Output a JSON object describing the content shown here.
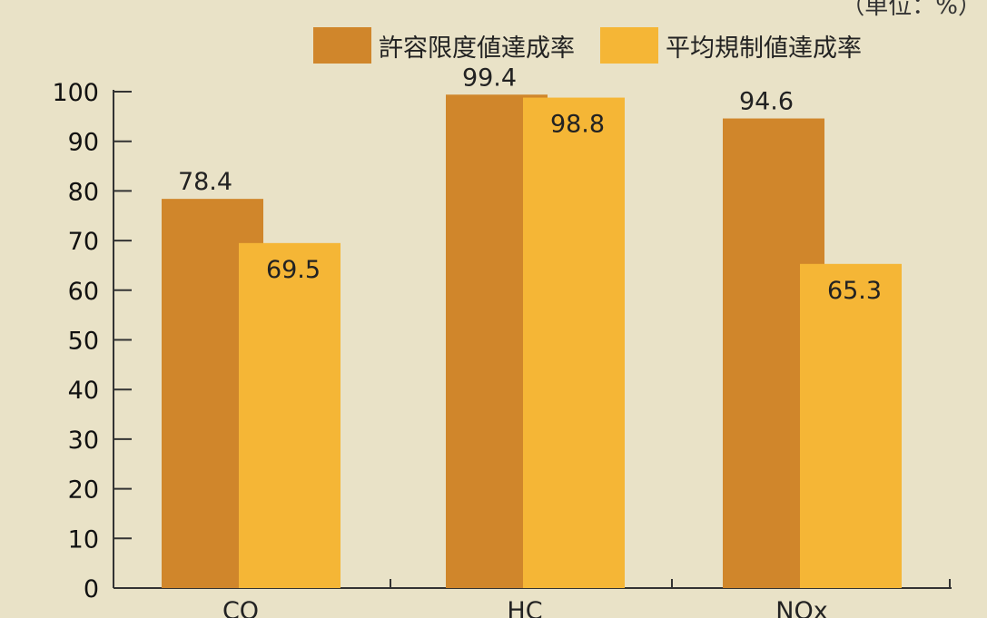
{
  "unit_note": "（単位：%）",
  "colors": {
    "series1": "#d0862b",
    "series2": "#f5b636",
    "axis": "#333333",
    "background": "#e9e2c7"
  },
  "chart_data": {
    "type": "bar",
    "title": "",
    "xlabel": "",
    "ylabel": "",
    "ylim": [
      0,
      100
    ],
    "yticks": [
      0,
      10,
      20,
      30,
      40,
      50,
      60,
      70,
      80,
      90,
      100
    ],
    "categories": [
      "CO",
      "HC",
      "NOx"
    ],
    "series": [
      {
        "name": "許容限度値達成率",
        "values": [
          78.4,
          99.4,
          94.6
        ]
      },
      {
        "name": "平均規制値達成率",
        "values": [
          69.5,
          98.8,
          65.3
        ]
      }
    ],
    "legend": "top-right",
    "grid": false
  }
}
